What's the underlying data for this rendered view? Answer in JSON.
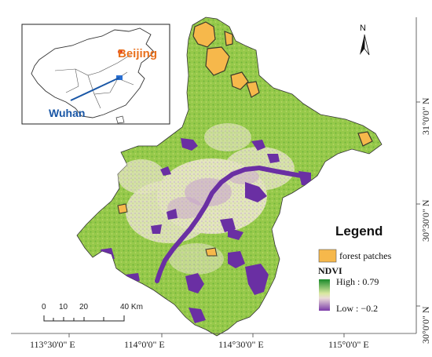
{
  "inset": {
    "beijing_label": "Beijing",
    "wuhan_label": "Wuhan"
  },
  "north_arrow": {
    "label": "N"
  },
  "legend": {
    "title": "Legend",
    "forest_label": "forest patches",
    "forest_color": "#f6b84b",
    "ndvi_title": "NDVI",
    "high_label": "High : 0.79",
    "low_label": "Low : −0.2",
    "high_color": "#1a8a2a",
    "low_color": "#7a3aa8"
  },
  "scale_bar": {
    "ticks": [
      "0",
      "10",
      "20",
      "40 Km"
    ]
  },
  "axes": {
    "x_ticks": [
      "113°30'0\" E",
      "114°0'0\" E",
      "114°30'0\" E",
      "115°0'0\" E"
    ],
    "y_ticks": [
      "31°0'0\" N",
      "30°30'0\" N",
      "30°0'0\" N"
    ]
  },
  "colors": {
    "vegetation": "#8cc63f",
    "urban": "#e6e6c0",
    "water": "#6a2fa3",
    "urban_mix": "#c9a6c9"
  }
}
